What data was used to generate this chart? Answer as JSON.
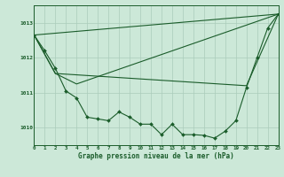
{
  "background_color": "#cce8d8",
  "grid_color": "#aaccbb",
  "line_color": "#1a5c2a",
  "title": "Graphe pression niveau de la mer (hPa)",
  "xlim": [
    0,
    23
  ],
  "ylim": [
    1009.5,
    1013.5
  ],
  "yticks": [
    1010,
    1011,
    1012,
    1013
  ],
  "xticks": [
    0,
    1,
    2,
    3,
    4,
    5,
    6,
    7,
    8,
    9,
    10,
    11,
    12,
    13,
    14,
    15,
    16,
    17,
    18,
    19,
    20,
    21,
    22,
    23
  ],
  "series1_marked": {
    "x": [
      0,
      1,
      2,
      3,
      4,
      5,
      6,
      7,
      8,
      9,
      10,
      11,
      12,
      13,
      14,
      15,
      16,
      17,
      18,
      19,
      20,
      21,
      22,
      23
    ],
    "y": [
      1012.65,
      1012.2,
      1011.7,
      1011.05,
      1010.85,
      1010.3,
      1010.25,
      1010.2,
      1010.45,
      1010.3,
      1010.1,
      1010.1,
      1009.8,
      1010.1,
      1009.8,
      1009.8,
      1009.78,
      1009.7,
      1009.9,
      1010.2,
      1011.15,
      1012.0,
      1012.85,
      1013.25
    ]
  },
  "series2": {
    "x": [
      0,
      23
    ],
    "y": [
      1012.65,
      1013.25
    ]
  },
  "series3": {
    "x": [
      0,
      2,
      4,
      23
    ],
    "y": [
      1012.65,
      1011.55,
      1011.25,
      1013.25
    ]
  },
  "series4": {
    "x": [
      0,
      2,
      20,
      23
    ],
    "y": [
      1012.65,
      1011.55,
      1011.2,
      1013.25
    ]
  }
}
